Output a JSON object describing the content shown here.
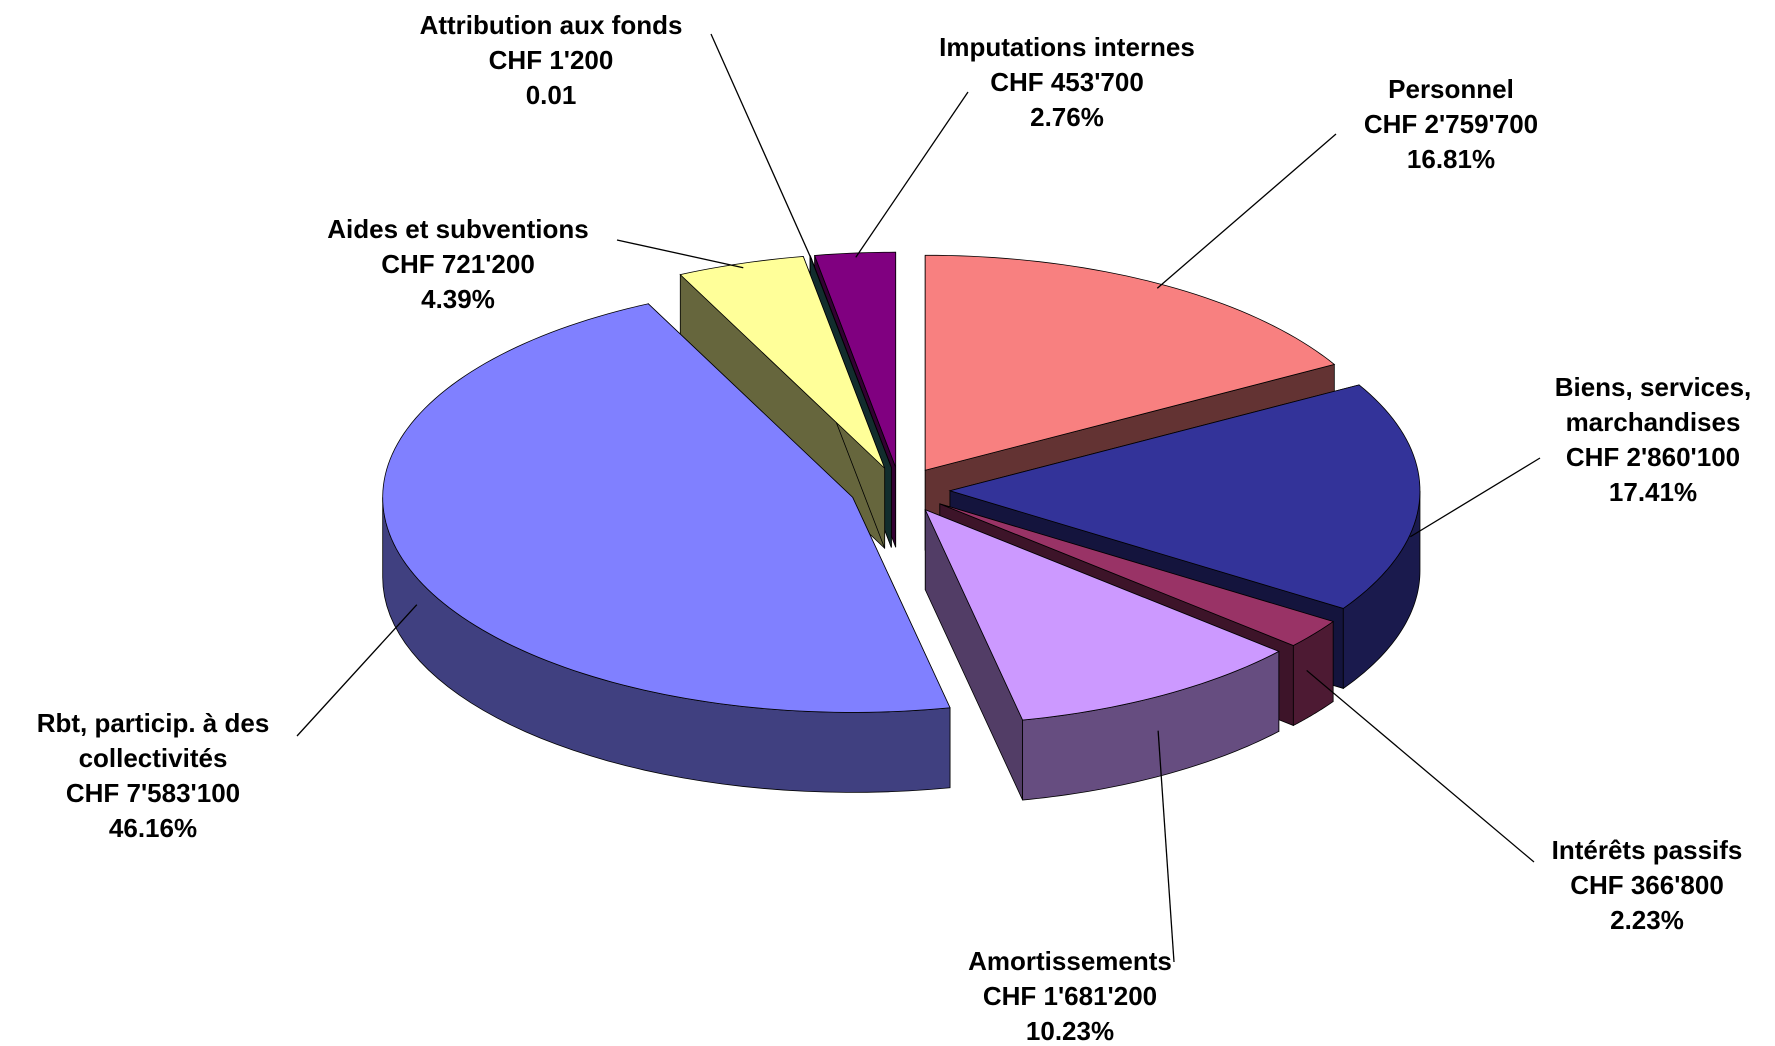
{
  "chart_data": {
    "type": "pie",
    "three_d": true,
    "exploded": true,
    "categories": [
      "Personnel",
      "Biens, services, marchandises",
      "Intérêts passifs",
      "Amortissements",
      "Rbt, particip. à des collectivités",
      "Aides et subventions",
      "Attribution aux fonds",
      "Imputations internes"
    ],
    "values": [
      2759700,
      2860100,
      366800,
      1681200,
      7583100,
      721200,
      1200,
      453700
    ],
    "value_labels": [
      "CHF 2'759'700",
      "CHF 2'860'100",
      "CHF 366'800",
      "CHF 1'681'200",
      "CHF 7'583'100",
      "CHF 721'200",
      "CHF 1'200",
      "CHF 453'700"
    ],
    "percentages": [
      16.81,
      17.41,
      2.23,
      10.23,
      46.16,
      4.39,
      0.01,
      2.76
    ],
    "percentage_labels": [
      "16.81%",
      "17.41%",
      "2.23%",
      "10.23%",
      "46.16%",
      "4.39%",
      "0.01",
      "2.76%"
    ],
    "colors": [
      "#f88080",
      "#333399",
      "#993366",
      "#cc99ff",
      "#8080ff",
      "#ffff99",
      "#2e7070",
      "#800080"
    ]
  }
}
